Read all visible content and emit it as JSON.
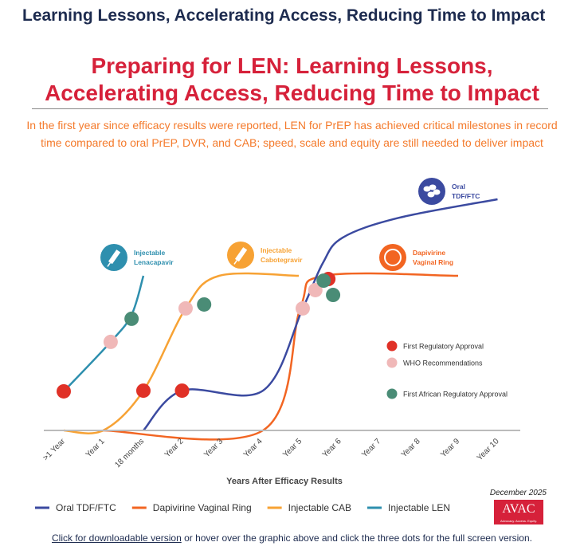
{
  "header": {
    "title": "Learning Lessons, Accelerating Access, Reducing Time to Impact"
  },
  "infographic": {
    "title_line1": "Preparing for LEN: Learning Lessons,",
    "title_line2": "Accelerating Access, Reducing Time to Impact",
    "subtitle": "In the first year since efficacy results were reported, LEN for PrEP has achieved critical milestones in record time compared to oral PrEP, DVR, and CAB; speed, scale and equity are still needed to deliver impact",
    "date": "December 2025",
    "logo_text": "AVAC",
    "logo_tagline": "Advocacy. Access. Equity."
  },
  "chart_data": {
    "type": "line",
    "xlabel": "Years After Efficacy Results",
    "ylabel": "",
    "categories": [
      ">1 Year",
      "Year 1",
      "18 months",
      "Year 2",
      "Year 3",
      "Year 4",
      "Year 5",
      "Year 6",
      "Year 7",
      "Year 8",
      "Year 9",
      "Year 10"
    ],
    "ylim": [
      0,
      10
    ],
    "grid": false,
    "legend_placement": "bottom",
    "series": [
      {
        "name": "Oral TDF/FTC",
        "label_line1": "Oral",
        "label_line2": "TDF/FTC",
        "icon": "pills-icon",
        "color": "#3b4aa0",
        "points": [
          [
            2.02,
            0
          ],
          [
            3,
            1.72
          ],
          [
            5.05,
            1.72
          ],
          [
            6.06,
            5.28
          ],
          [
            6.57,
            7.24
          ],
          [
            7.07,
            8.34
          ],
          [
            8.5,
            9.2
          ],
          [
            11,
            10
          ]
        ]
      },
      {
        "name": "Dapivirine Vaginal Ring",
        "label_line1": "Dapivirine",
        "label_line2": "Vaginal Ring",
        "icon": "ring-icon",
        "color": "#f26522",
        "points": [
          [
            1,
            0
          ],
          [
            5.05,
            0
          ],
          [
            6,
            5.3
          ],
          [
            6.6,
            6.69
          ],
          [
            10,
            6.69
          ]
        ]
      },
      {
        "name": "Injectable CAB",
        "label_line1": "Injectable",
        "label_line2": "Cabotegravir",
        "icon": "syringe-icon",
        "color": "#f7a234",
        "points": [
          [
            0,
            0
          ],
          [
            1,
            0
          ],
          [
            2.02,
            1.72
          ],
          [
            3.09,
            5.28
          ],
          [
            3.94,
            6.69
          ],
          [
            5.96,
            6.69
          ]
        ]
      },
      {
        "name": "Injectable LEN",
        "label_line1": "Injectable",
        "label_line2": "Lenacapavir",
        "icon": "syringe-icon",
        "color": "#2e8fae",
        "points": [
          [
            0,
            1.69
          ],
          [
            1.19,
            3.83
          ],
          [
            1.72,
            5
          ],
          [
            2.02,
            6.69
          ]
        ]
      }
    ],
    "milestones": [
      {
        "name": "First Regulatory Approval",
        "color": "#e03127"
      },
      {
        "name": "WHO Recommendations",
        "color": "#f0b8b8"
      },
      {
        "name": "First African Regulatory Approval",
        "color": "#4a8c76"
      }
    ],
    "milestone_points": [
      {
        "series": "Injectable LEN",
        "type": 0,
        "x": 0,
        "y": 1.69
      },
      {
        "series": "Injectable LEN",
        "type": 1,
        "x": 1.19,
        "y": 3.83
      },
      {
        "series": "Injectable LEN",
        "type": 2,
        "x": 1.72,
        "y": 4.83
      },
      {
        "series": "Injectable CAB",
        "type": 0,
        "x": 2.02,
        "y": 1.72
      },
      {
        "series": "Injectable CAB",
        "type": 1,
        "x": 3.09,
        "y": 5.28
      },
      {
        "series": "Injectable CAB",
        "type": 2,
        "x": 3.56,
        "y": 5.45
      },
      {
        "series": "Oral TDF/FTC",
        "type": 0,
        "x": 3,
        "y": 1.72
      },
      {
        "series": "Oral TDF/FTC",
        "type": 1,
        "x": 6.06,
        "y": 5.28
      },
      {
        "series": "Oral TDF/FTC",
        "type": 2,
        "x": 6.83,
        "y": 5.86
      },
      {
        "series": "Dapivirine Vaginal Ring",
        "type": 1,
        "x": 6.38,
        "y": 6.07
      },
      {
        "series": "Dapivirine Vaginal Ring",
        "type": 0,
        "x": 6.71,
        "y": 6.55
      },
      {
        "series": "Dapivirine Vaginal Ring",
        "type": 2,
        "x": 6.59,
        "y": 6.48
      }
    ]
  },
  "footer": {
    "link": "Click for downloadable version",
    "rest": " or hover over the graphic above and click the three dots for the full screen version."
  }
}
